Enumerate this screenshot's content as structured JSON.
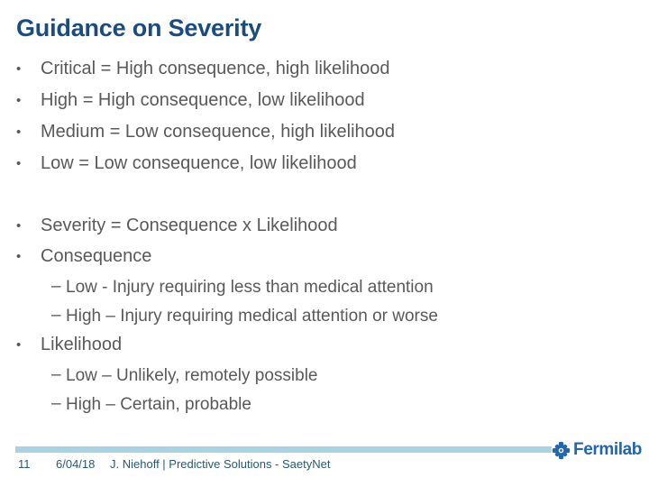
{
  "slide": {
    "title": "Guidance on Severity",
    "bullet_groups": [
      {
        "items": [
          {
            "level": 1,
            "text": "Critical = High consequence, high likelihood"
          },
          {
            "level": 1,
            "text": "High = High consequence, low likelihood"
          },
          {
            "level": 1,
            "text": "Medium = Low consequence, high likelihood"
          },
          {
            "level": 1,
            "text": "Low = Low consequence, low likelihood"
          }
        ]
      },
      {
        "items": [
          {
            "level": 1,
            "text": "Severity = Consequence x Likelihood"
          },
          {
            "level": 1,
            "text": "Consequence"
          },
          {
            "level": 2,
            "text": "Low - Injury requiring less than medical attention"
          },
          {
            "level": 2,
            "text": "High – Injury requiring medical attention or worse"
          },
          {
            "level": 1,
            "text": "Likelihood"
          },
          {
            "level": 2,
            "text": "Low – Unlikely, remotely possible"
          },
          {
            "level": 2,
            "text": "High – Certain, probable"
          }
        ]
      }
    ],
    "markers": {
      "level1": "•",
      "level2": "–"
    },
    "footer": {
      "slide_number": "11",
      "date": "6/04/18",
      "attribution": "J. Niehoff | Predictive Solutions - SaetyNet",
      "logo_text": "Fermilab"
    },
    "colors": {
      "title_navy": "#1a4c80",
      "body_gray": "#595959",
      "footer_bar_blue": "#a7d3e5",
      "footer_text_teal": "#265b70",
      "logo_blue": "#2166ae"
    }
  }
}
